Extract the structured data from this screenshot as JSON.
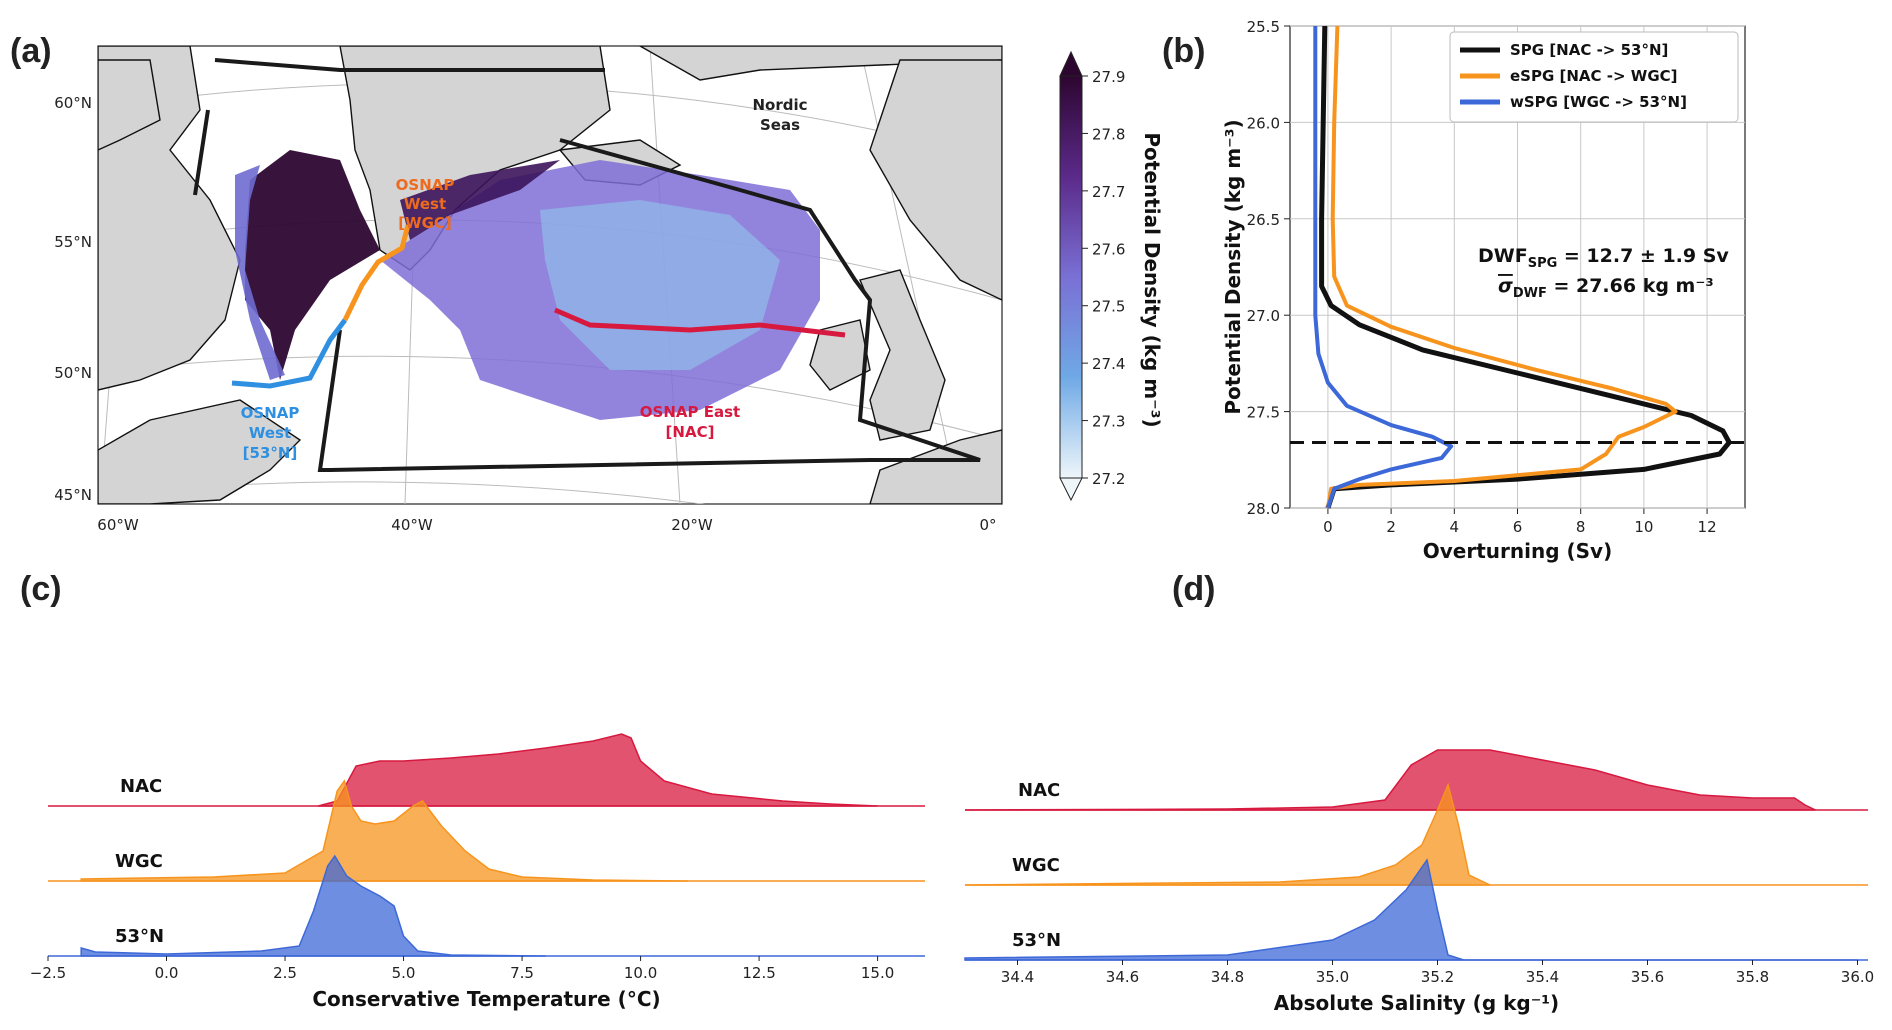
{
  "panels": {
    "a": "(a)",
    "b": "(b)",
    "c": "(c)",
    "d": "(d)"
  },
  "map": {
    "lat_labels": [
      "60°N",
      "55°N",
      "50°N",
      "45°N"
    ],
    "lon_labels": [
      "60°W",
      "40°W",
      "20°W",
      "0°"
    ],
    "labels": {
      "nordic_line1": "Nordic",
      "nordic_line2": "Seas",
      "osnap_west_wgc_1": "OSNAP",
      "osnap_west_wgc_2": "West",
      "osnap_west_wgc_3": "[WGC]",
      "osnap_west_53_1": "OSNAP",
      "osnap_west_53_2": "West",
      "osnap_west_53_3": "[53°N]",
      "osnap_east_1": "OSNAP East",
      "osnap_east_2": "[NAC]"
    },
    "colors": {
      "wgc": "#f7941d",
      "west53": "#2f8fe0",
      "east": "#d7193f",
      "box": "#1a1a1a",
      "land": "#d4d4d4"
    },
    "colorbar": {
      "label": "Potential Density (kg m⁻³)",
      "ticks": [
        "27.9",
        "27.8",
        "27.7",
        "27.6",
        "27.5",
        "27.4",
        "27.3",
        "27.2"
      ],
      "range": [
        27.2,
        27.9
      ]
    }
  },
  "chart_data": [
    {
      "panel": "b",
      "type": "line",
      "xlabel": "Overturning (Sv)",
      "ylabel": "Potential Density (kg m⁻³)",
      "xlim": [
        -1.2,
        13.2
      ],
      "ylim": [
        28.0,
        25.5
      ],
      "y_inverted": true,
      "xticks": [
        "0",
        "2",
        "4",
        "6",
        "8",
        "10",
        "12"
      ],
      "yticks": [
        "25.5",
        "26.0",
        "26.5",
        "27.0",
        "27.5",
        "28.0"
      ],
      "grid": true,
      "legend_position": "top-right",
      "annotation_line1": "DWF",
      "annotation_sub1": "SPG",
      "annotation_rest1": " = 12.7 ± 1.9 Sv",
      "annotation_line2": "σ",
      "annotation_sub2": "DWF",
      "annotation_rest2": " = 27.66 kg m⁻³",
      "reference_line_y": 27.66,
      "series": [
        {
          "name": "SPG [NAC -> 53°N]",
          "color": "#111111",
          "points": [
            [
              -0.1,
              25.5
            ],
            [
              -0.15,
              26.0
            ],
            [
              -0.2,
              26.5
            ],
            [
              -0.2,
              26.85
            ],
            [
              0.1,
              26.95
            ],
            [
              1,
              27.05
            ],
            [
              3,
              27.18
            ],
            [
              6,
              27.3
            ],
            [
              9,
              27.42
            ],
            [
              11.5,
              27.52
            ],
            [
              12.5,
              27.6
            ],
            [
              12.7,
              27.66
            ],
            [
              12.4,
              27.72
            ],
            [
              10,
              27.8
            ],
            [
              6,
              27.85
            ],
            [
              2,
              27.88
            ],
            [
              0.2,
              27.9
            ],
            [
              0,
              28.0
            ]
          ]
        },
        {
          "name": "eSPG [NAC -> WGC]",
          "color": "#f7941d",
          "points": [
            [
              0.3,
              25.5
            ],
            [
              0.2,
              26.0
            ],
            [
              0.15,
              26.5
            ],
            [
              0.2,
              26.8
            ],
            [
              0.6,
              26.95
            ],
            [
              2,
              27.06
            ],
            [
              4,
              27.17
            ],
            [
              6.5,
              27.28
            ],
            [
              9,
              27.38
            ],
            [
              10.7,
              27.46
            ],
            [
              11,
              27.5
            ],
            [
              10,
              27.58
            ],
            [
              9.2,
              27.63
            ],
            [
              8.8,
              27.72
            ],
            [
              8,
              27.8
            ],
            [
              4,
              27.86
            ],
            [
              1,
              27.88
            ],
            [
              0.1,
              27.9
            ],
            [
              0,
              28.0
            ]
          ]
        },
        {
          "name": "wSPG [WGC -> 53°N]",
          "color": "#3d68d8",
          "points": [
            [
              -0.4,
              25.5
            ],
            [
              -0.4,
              26.0
            ],
            [
              -0.4,
              26.5
            ],
            [
              -0.4,
              27.0
            ],
            [
              -0.3,
              27.2
            ],
            [
              0,
              27.35
            ],
            [
              0.6,
              27.47
            ],
            [
              2,
              27.57
            ],
            [
              3.3,
              27.63
            ],
            [
              3.9,
              27.68
            ],
            [
              3.6,
              27.74
            ],
            [
              2,
              27.8
            ],
            [
              1,
              27.85
            ],
            [
              0.2,
              27.9
            ],
            [
              0,
              28.0
            ]
          ]
        }
      ]
    },
    {
      "panel": "c",
      "type": "area",
      "xlabel": "Conservative Temperature (°C)",
      "xlim": [
        -2.5,
        16
      ],
      "xticks": [
        "−2.5",
        "0.0",
        "2.5",
        "5.0",
        "7.5",
        "10.0",
        "12.5",
        "15.0"
      ],
      "series": [
        {
          "name": "NAC",
          "color": "#d7193f",
          "points": [
            [
              3.2,
              0
            ],
            [
              3.6,
              0.05
            ],
            [
              4.0,
              0.4
            ],
            [
              4.5,
              0.45
            ],
            [
              5.0,
              0.45
            ],
            [
              6,
              0.48
            ],
            [
              7,
              0.52
            ],
            [
              8,
              0.58
            ],
            [
              9,
              0.65
            ],
            [
              9.6,
              0.72
            ],
            [
              9.8,
              0.68
            ],
            [
              10,
              0.45
            ],
            [
              10.5,
              0.25
            ],
            [
              11.5,
              0.12
            ],
            [
              13,
              0.05
            ],
            [
              14,
              0.02
            ],
            [
              15,
              0
            ]
          ]
        },
        {
          "name": "WGC",
          "color": "#f7941d",
          "points": [
            [
              -1.8,
              0.02
            ],
            [
              1,
              0.04
            ],
            [
              2.5,
              0.08
            ],
            [
              3.3,
              0.3
            ],
            [
              3.6,
              0.9
            ],
            [
              3.75,
              1.0
            ],
            [
              3.9,
              0.75
            ],
            [
              4.1,
              0.6
            ],
            [
              4.4,
              0.57
            ],
            [
              4.8,
              0.6
            ],
            [
              5.2,
              0.75
            ],
            [
              5.4,
              0.8
            ],
            [
              5.8,
              0.55
            ],
            [
              6.3,
              0.3
            ],
            [
              6.8,
              0.12
            ],
            [
              7.5,
              0.04
            ],
            [
              9,
              0.01
            ],
            [
              11,
              0
            ]
          ]
        },
        {
          "name": "53°N",
          "color": "#3d68d8",
          "points": [
            [
              -1.8,
              0.08
            ],
            [
              -1.5,
              0.04
            ],
            [
              0,
              0.02
            ],
            [
              2,
              0.05
            ],
            [
              2.8,
              0.1
            ],
            [
              3.1,
              0.45
            ],
            [
              3.4,
              0.9
            ],
            [
              3.55,
              1.0
            ],
            [
              3.8,
              0.8
            ],
            [
              4.1,
              0.7
            ],
            [
              4.5,
              0.6
            ],
            [
              4.8,
              0.5
            ],
            [
              5.0,
              0.2
            ],
            [
              5.3,
              0.05
            ],
            [
              6,
              0.01
            ],
            [
              8,
              0
            ]
          ]
        }
      ]
    },
    {
      "panel": "d",
      "type": "area",
      "xlabel": "Absolute Salinity (g kg⁻¹)",
      "xlim": [
        34.3,
        36.02
      ],
      "xticks": [
        "34.4",
        "34.6",
        "34.8",
        "35.0",
        "35.2",
        "35.4",
        "35.6",
        "35.8",
        "36.0"
      ],
      "series": [
        {
          "name": "NAC",
          "color": "#d7193f",
          "points": [
            [
              34.3,
              0
            ],
            [
              34.8,
              0.01
            ],
            [
              35.0,
              0.03
            ],
            [
              35.1,
              0.1
            ],
            [
              35.15,
              0.45
            ],
            [
              35.2,
              0.6
            ],
            [
              35.3,
              0.6
            ],
            [
              35.4,
              0.5
            ],
            [
              35.5,
              0.4
            ],
            [
              35.6,
              0.25
            ],
            [
              35.7,
              0.15
            ],
            [
              35.8,
              0.12
            ],
            [
              35.88,
              0.12
            ],
            [
              35.9,
              0.05
            ],
            [
              35.92,
              0
            ]
          ]
        },
        {
          "name": "WGC",
          "color": "#f7941d",
          "points": [
            [
              34.3,
              0
            ],
            [
              34.9,
              0.03
            ],
            [
              35.05,
              0.08
            ],
            [
              35.12,
              0.2
            ],
            [
              35.17,
              0.4
            ],
            [
              35.2,
              0.75
            ],
            [
              35.22,
              1.0
            ],
            [
              35.24,
              0.6
            ],
            [
              35.26,
              0.1
            ],
            [
              35.3,
              0
            ]
          ]
        },
        {
          "name": "53°N",
          "color": "#3d68d8",
          "points": [
            [
              34.3,
              0.02
            ],
            [
              34.8,
              0.05
            ],
            [
              35.0,
              0.2
            ],
            [
              35.08,
              0.4
            ],
            [
              35.14,
              0.7
            ],
            [
              35.18,
              1.0
            ],
            [
              35.2,
              0.5
            ],
            [
              35.22,
              0.05
            ],
            [
              35.25,
              0
            ],
            [
              36.0,
              0
            ]
          ]
        }
      ]
    }
  ]
}
